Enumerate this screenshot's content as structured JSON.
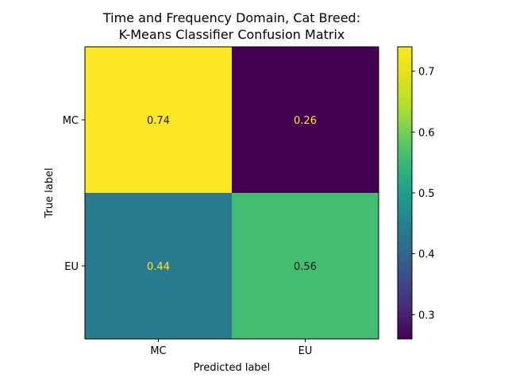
{
  "chart_data": {
    "type": "heatmap",
    "title_lines": [
      "Time and Frequency Domain, Cat Breed:",
      "K-Means Classifier Confusion Matrix"
    ],
    "xlabel": "Predicted label",
    "ylabel": "True label",
    "x_categories": [
      "MC",
      "EU"
    ],
    "y_categories": [
      "MC",
      "EU"
    ],
    "values": [
      [
        0.74,
        0.26
      ],
      [
        0.44,
        0.56
      ]
    ],
    "value_labels": [
      [
        "0.74",
        "0.26"
      ],
      [
        "0.44",
        "0.56"
      ]
    ],
    "colormap": "viridis",
    "colorbar": {
      "range": [
        0.26,
        0.74
      ],
      "ticks": [
        0.3,
        0.4,
        0.5,
        0.6,
        0.7
      ],
      "tick_labels": [
        "0.3",
        "0.4",
        "0.5",
        "0.6",
        "0.7"
      ]
    },
    "grid": false
  }
}
